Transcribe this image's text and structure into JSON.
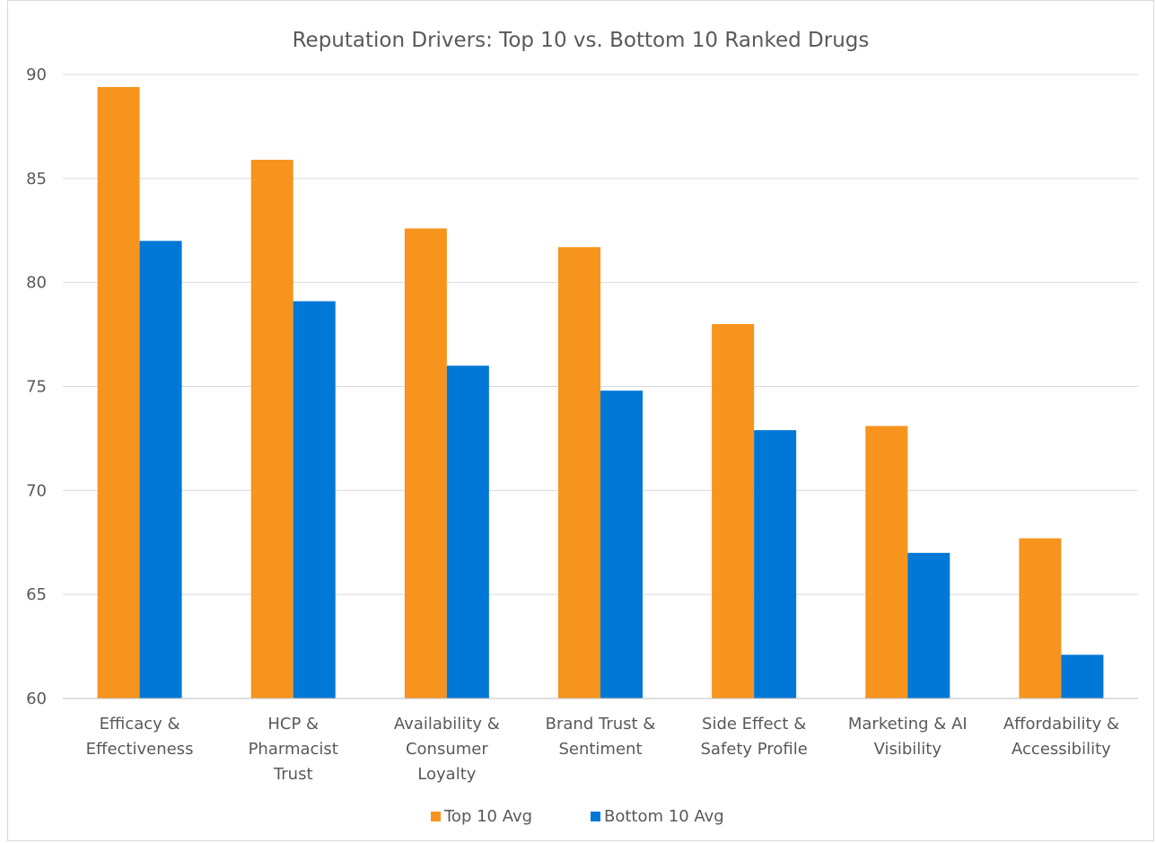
{
  "chart_data": {
    "type": "bar",
    "title": "Reputation Drivers: Top 10 vs. Bottom 10 Ranked Drugs",
    "categories": [
      [
        "Efficacy &",
        "Effectiveness"
      ],
      [
        "HCP &",
        "Pharmacist",
        "Trust"
      ],
      [
        "Availability &",
        "Consumer",
        "Loyalty"
      ],
      [
        "Brand Trust &",
        "Sentiment"
      ],
      [
        "Side Effect &",
        "Safety Profile"
      ],
      [
        "Marketing & AI",
        "Visibility"
      ],
      [
        "Affordability &",
        "Accessibility"
      ]
    ],
    "series": [
      {
        "name": "Top 10 Avg",
        "color": "#F7941D",
        "values": [
          89.4,
          85.9,
          82.6,
          81.7,
          78.0,
          73.1,
          67.7
        ]
      },
      {
        "name": "Bottom 10 Avg",
        "color": "#0078D7",
        "values": [
          82.0,
          79.1,
          76.0,
          74.8,
          72.9,
          67.0,
          62.1
        ]
      }
    ],
    "ylim": [
      60,
      90
    ],
    "yticks": [
      "60",
      "65",
      "70",
      "75",
      "80",
      "85",
      "90"
    ],
    "grid": true,
    "legend": "bottom"
  }
}
